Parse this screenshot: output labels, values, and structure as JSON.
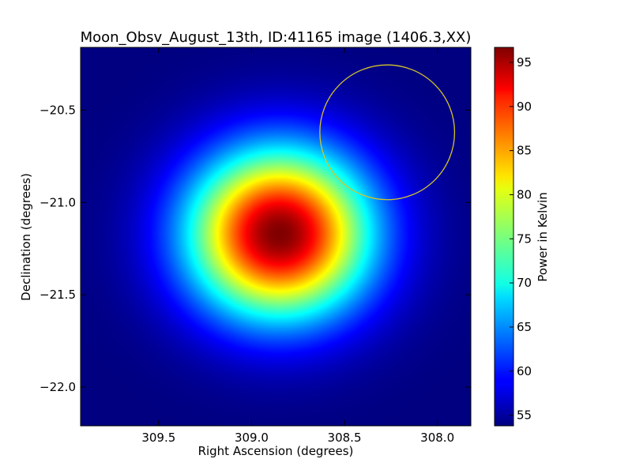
{
  "chart_data": {
    "type": "heatmap",
    "title": "Moon_Obsv_August_13th, ID:41165 image (1406.3,XX)",
    "xlabel": "Right Ascension (degrees)",
    "ylabel": "Declination (degrees)",
    "colorbar_label": "Power in Kelvin",
    "colormap": "jet",
    "xlim": [
      309.92,
      307.82
    ],
    "ylim": [
      -22.21,
      -20.16
    ],
    "x_ticks": [
      309.5,
      309.0,
      308.5,
      308.0
    ],
    "x_tick_labels": [
      "309.5",
      "309.0",
      "308.5",
      "308.0"
    ],
    "y_ticks": [
      -20.5,
      -21.0,
      -21.5,
      -22.0
    ],
    "y_tick_labels": [
      "−20.5",
      "−21.0",
      "−21.5",
      "−22.0"
    ],
    "colorbar_range": [
      53.8,
      96.7
    ],
    "colorbar_ticks": [
      55,
      60,
      65,
      70,
      75,
      80,
      85,
      90,
      95
    ],
    "colorbar_tick_labels": [
      "55",
      "60",
      "65",
      "70",
      "75",
      "80",
      "85",
      "90",
      "95"
    ],
    "source": {
      "center_ra": 308.85,
      "center_dec": -21.17,
      "peak": 96.7,
      "background": 53.8
    },
    "annotation": {
      "shape": "circle",
      "center_ra": 308.27,
      "center_dec": -20.62,
      "radius_deg": 0.365,
      "color": "#d4c42a"
    }
  }
}
